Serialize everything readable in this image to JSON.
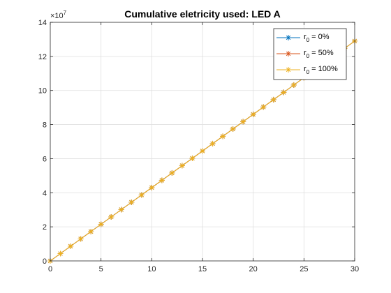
{
  "chart_data": {
    "type": "line",
    "title": "Cumulative eletricity used: LED A",
    "xlabel": "",
    "ylabel": "",
    "xlim": [
      0,
      30
    ],
    "ylim": [
      0,
      14
    ],
    "x_ticks": [
      0,
      5,
      10,
      15,
      20,
      25,
      30
    ],
    "y_ticks": [
      0,
      2,
      4,
      6,
      8,
      10,
      12,
      14
    ],
    "y_exponent_label": "×10",
    "y_exponent_power": "7",
    "grid": true,
    "legend_placement": "top-right",
    "marker": "asterisk",
    "x": [
      0,
      1,
      2,
      3,
      4,
      5,
      6,
      7,
      8,
      9,
      10,
      11,
      12,
      13,
      14,
      15,
      16,
      17,
      18,
      19,
      20,
      21,
      22,
      23,
      24,
      25,
      26,
      27,
      28,
      29,
      30
    ],
    "series": [
      {
        "name_prefix": "r",
        "name_sub": "0",
        "name_suffix": " = 0%",
        "color": "#0072BD",
        "values": [
          0,
          0.43,
          0.86,
          1.29,
          1.72,
          2.15,
          2.58,
          3.01,
          3.44,
          3.87,
          4.3,
          4.73,
          5.16,
          5.59,
          6.02,
          6.45,
          6.88,
          7.31,
          7.74,
          8.17,
          8.6,
          9.03,
          9.46,
          9.89,
          10.32,
          10.75,
          11.18,
          11.61,
          12.04,
          12.47,
          12.9
        ]
      },
      {
        "name_prefix": "r",
        "name_sub": "0",
        "name_suffix": " = 50%",
        "color": "#D95319",
        "values": [
          0,
          0.43,
          0.86,
          1.29,
          1.72,
          2.15,
          2.58,
          3.01,
          3.44,
          3.87,
          4.3,
          4.73,
          5.16,
          5.59,
          6.02,
          6.45,
          6.88,
          7.31,
          7.74,
          8.17,
          8.6,
          9.03,
          9.46,
          9.89,
          10.32,
          10.75,
          11.18,
          11.61,
          12.04,
          12.47,
          12.9
        ]
      },
      {
        "name_prefix": "r",
        "name_sub": "0",
        "name_suffix": " = 100%",
        "color": "#EDB120",
        "values": [
          0,
          0.43,
          0.86,
          1.29,
          1.72,
          2.15,
          2.58,
          3.01,
          3.44,
          3.87,
          4.3,
          4.73,
          5.16,
          5.59,
          6.02,
          6.45,
          6.88,
          7.31,
          7.74,
          8.17,
          8.6,
          9.03,
          9.46,
          9.89,
          10.32,
          10.75,
          11.18,
          11.61,
          12.04,
          12.47,
          12.9
        ]
      }
    ]
  }
}
